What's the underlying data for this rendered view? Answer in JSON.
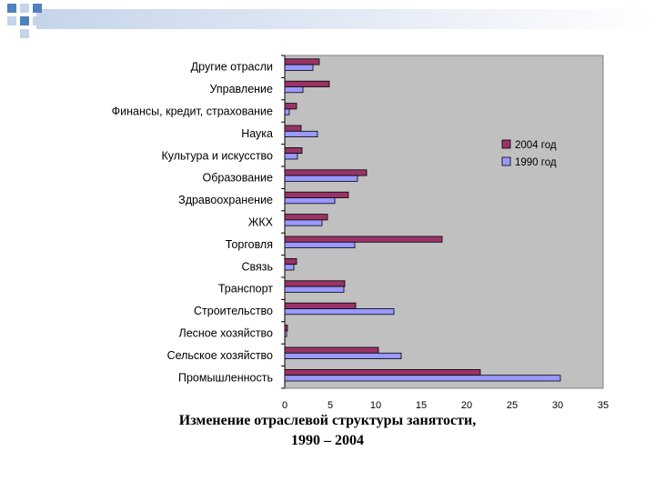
{
  "slide": {
    "accent_color": "#4f81bd",
    "light_color": "#c6d4ea",
    "bar_gradient": [
      "#dfe6f2",
      "#ffffff"
    ]
  },
  "caption": {
    "line1": "Изменение отраслевой структуры занятости,",
    "line2": "1990 – 2004"
  },
  "chart_data": {
    "type": "bar",
    "orientation": "horizontal",
    "categories": [
      "Другие отрасли",
      "Управление",
      "Финансы, кредит, страхование",
      "Наука",
      "Культура и искусство",
      "Образование",
      "Здравоохранение",
      "ЖКХ",
      "Торговля",
      "Связь",
      "Транспорт",
      "Строительство",
      "Лесное хозяйство",
      "Сельское хозяйство",
      "Промышленность"
    ],
    "series": [
      {
        "name": "2004 год",
        "color": "#993366",
        "values": [
          3.8,
          4.9,
          1.3,
          1.8,
          1.9,
          9.0,
          7.0,
          4.7,
          17.3,
          1.3,
          6.6,
          7.8,
          0.3,
          10.3,
          21.5
        ]
      },
      {
        "name": "1990 год",
        "color": "#9999ff",
        "values": [
          3.1,
          2.0,
          0.5,
          3.6,
          1.4,
          8.0,
          5.5,
          4.1,
          7.7,
          1.0,
          6.5,
          12.0,
          0.2,
          12.8,
          30.3
        ]
      }
    ],
    "xlim": [
      0,
      35
    ],
    "xticks": [
      0,
      5,
      10,
      15,
      20,
      25,
      30,
      35
    ],
    "plot_background": "#c0c0c0",
    "grid": false,
    "legend_position": "right"
  }
}
